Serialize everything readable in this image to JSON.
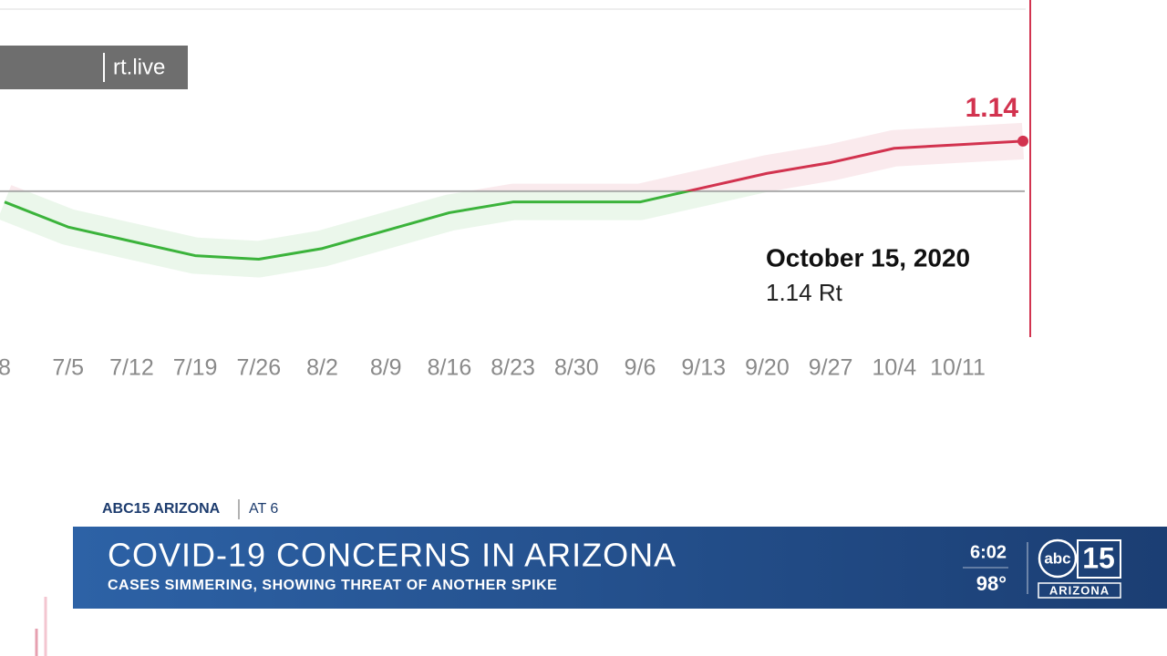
{
  "chart_data": {
    "type": "line",
    "categories": [
      "8",
      "7/5",
      "7/12",
      "7/19",
      "7/26",
      "8/2",
      "8/9",
      "8/16",
      "8/23",
      "8/30",
      "9/6",
      "9/13",
      "9/20",
      "9/27",
      "10/4",
      "10/11",
      null
    ],
    "values": [
      0.97,
      0.9,
      0.86,
      0.82,
      0.81,
      0.84,
      0.89,
      0.94,
      0.97,
      0.97,
      0.97,
      1.01,
      1.05,
      1.08,
      1.12,
      1.13,
      1.14
    ],
    "ylim": [
      0.6,
      1.5
    ],
    "reference": 1,
    "colors": {
      "below": "#3bb33b",
      "above": "#d2334f"
    },
    "annotation": {
      "title": "October 15, 2020",
      "text": "1.14 Rt"
    }
  },
  "watermark": "rt.live",
  "lower_third": {
    "station": "ABC15 ARIZONA",
    "show": "AT 6",
    "headline": "COVID-19 CONCERNS IN ARIZONA",
    "subhead": "CASES SIMMERING, SHOWING THREAT OF ANOTHER SPIKE",
    "time": "6:02",
    "temperature": "98°",
    "logo_number": "15",
    "logo_text": "abc",
    "logo_region": "ARIZONA"
  }
}
